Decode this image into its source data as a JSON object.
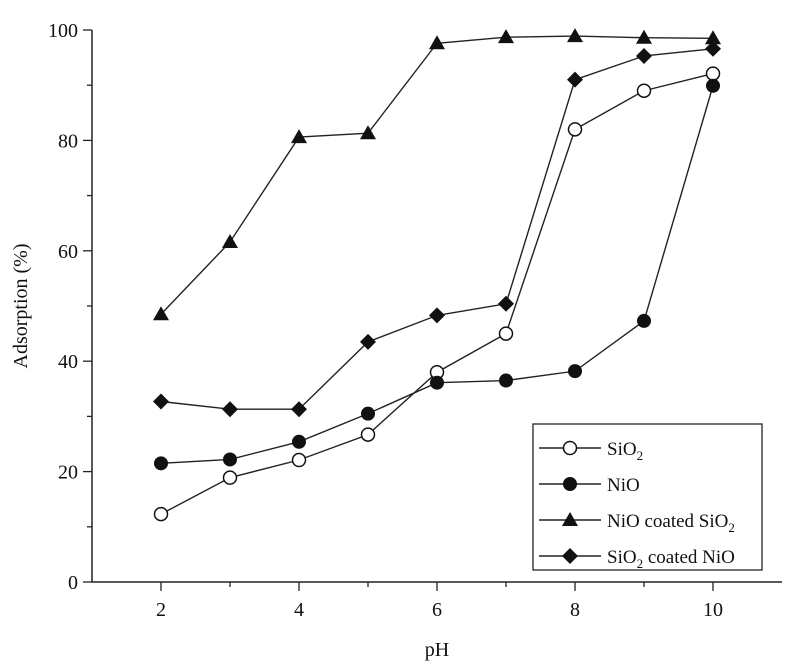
{
  "chart_data": {
    "type": "line",
    "xlabel": "pH",
    "ylabel": "Adsorption (%)",
    "xlim": [
      1,
      11
    ],
    "ylim": [
      0,
      100
    ],
    "x_ticks": [
      2,
      4,
      6,
      8,
      10
    ],
    "y_ticks": [
      0,
      20,
      40,
      60,
      80,
      100
    ],
    "grid": false,
    "legend_position": "bottom-right",
    "x": [
      2,
      3,
      4,
      5,
      6,
      7,
      8,
      9,
      10
    ],
    "series": [
      {
        "name": "SiO2",
        "label_main": "SiO",
        "label_sub": "2",
        "label_rest": "",
        "label_pre": "",
        "marker": "circle-open",
        "values": [
          12.3,
          18.9,
          22.1,
          26.7,
          38.0,
          45.0,
          82.0,
          89.0,
          92.1
        ]
      },
      {
        "name": "NiO",
        "label_main": "NiO",
        "label_sub": "",
        "label_rest": "",
        "label_pre": "",
        "marker": "circle-filled",
        "values": [
          21.5,
          22.2,
          25.4,
          30.5,
          36.1,
          36.5,
          38.2,
          47.3,
          89.9
        ]
      },
      {
        "name": "NiO coated SiO2",
        "label_main": "NiO coated SiO",
        "label_sub": "2",
        "label_rest": "",
        "label_pre": "",
        "marker": "triangle",
        "values": [
          48.5,
          61.6,
          80.6,
          81.3,
          97.6,
          98.7,
          98.9,
          98.6,
          98.5
        ]
      },
      {
        "name": "SiO2 coated NiO",
        "label_main": "SiO",
        "label_sub": "2",
        "label_rest": " coated NiO",
        "label_pre": "",
        "marker": "diamond",
        "values": [
          32.7,
          31.3,
          31.3,
          43.5,
          48.3,
          50.4,
          91.0,
          95.3,
          96.6
        ]
      }
    ]
  }
}
